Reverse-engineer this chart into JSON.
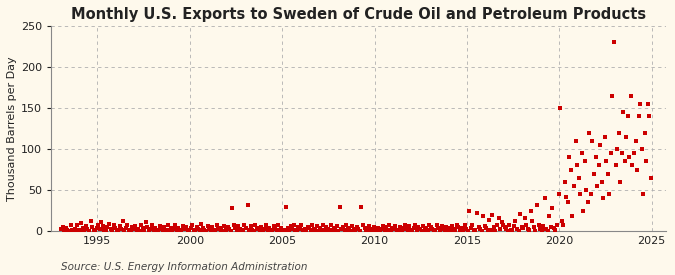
{
  "title": "Monthly U.S. Exports to Sweden of Crude Oil and Petroleum Products",
  "ylabel": "Thousand Barrels per Day",
  "source": "Source: U.S. Energy Information Administration",
  "background_color": "#fef9ec",
  "dot_color": "#cc0000",
  "xlim": [
    1992.5,
    2025.8
  ],
  "ylim": [
    0,
    250
  ],
  "yticks": [
    0,
    50,
    100,
    150,
    200,
    250
  ],
  "xticks": [
    1995,
    2000,
    2005,
    2010,
    2015,
    2020,
    2025
  ],
  "title_fontsize": 10.5,
  "ylabel_fontsize": 8,
  "tick_fontsize": 8,
  "source_fontsize": 7.5,
  "dot_size": 5,
  "data": {
    "years": [
      1993,
      1993,
      1993,
      1993,
      1993,
      1993,
      1993,
      1993,
      1993,
      1993,
      1993,
      1993,
      1994,
      1994,
      1994,
      1994,
      1994,
      1994,
      1994,
      1994,
      1994,
      1994,
      1994,
      1994,
      1995,
      1995,
      1995,
      1995,
      1995,
      1995,
      1995,
      1995,
      1995,
      1995,
      1995,
      1995,
      1996,
      1996,
      1996,
      1996,
      1996,
      1996,
      1996,
      1996,
      1996,
      1996,
      1996,
      1996,
      1997,
      1997,
      1997,
      1997,
      1997,
      1997,
      1997,
      1997,
      1997,
      1997,
      1997,
      1997,
      1998,
      1998,
      1998,
      1998,
      1998,
      1998,
      1998,
      1998,
      1998,
      1998,
      1998,
      1998,
      1999,
      1999,
      1999,
      1999,
      1999,
      1999,
      1999,
      1999,
      1999,
      1999,
      1999,
      1999,
      2000,
      2000,
      2000,
      2000,
      2000,
      2000,
      2000,
      2000,
      2000,
      2000,
      2000,
      2000,
      2001,
      2001,
      2001,
      2001,
      2001,
      2001,
      2001,
      2001,
      2001,
      2001,
      2001,
      2001,
      2002,
      2002,
      2002,
      2002,
      2002,
      2002,
      2002,
      2002,
      2002,
      2002,
      2002,
      2002,
      2003,
      2003,
      2003,
      2003,
      2003,
      2003,
      2003,
      2003,
      2003,
      2003,
      2003,
      2003,
      2004,
      2004,
      2004,
      2004,
      2004,
      2004,
      2004,
      2004,
      2004,
      2004,
      2004,
      2004,
      2005,
      2005,
      2005,
      2005,
      2005,
      2005,
      2005,
      2005,
      2005,
      2005,
      2005,
      2005,
      2006,
      2006,
      2006,
      2006,
      2006,
      2006,
      2006,
      2006,
      2006,
      2006,
      2006,
      2006,
      2007,
      2007,
      2007,
      2007,
      2007,
      2007,
      2007,
      2007,
      2007,
      2007,
      2007,
      2007,
      2008,
      2008,
      2008,
      2008,
      2008,
      2008,
      2008,
      2008,
      2008,
      2008,
      2008,
      2008,
      2009,
      2009,
      2009,
      2009,
      2009,
      2009,
      2009,
      2009,
      2009,
      2009,
      2009,
      2009,
      2010,
      2010,
      2010,
      2010,
      2010,
      2010,
      2010,
      2010,
      2010,
      2010,
      2010,
      2010,
      2011,
      2011,
      2011,
      2011,
      2011,
      2011,
      2011,
      2011,
      2011,
      2011,
      2011,
      2011,
      2012,
      2012,
      2012,
      2012,
      2012,
      2012,
      2012,
      2012,
      2012,
      2012,
      2012,
      2012,
      2013,
      2013,
      2013,
      2013,
      2013,
      2013,
      2013,
      2013,
      2013,
      2013,
      2013,
      2013,
      2014,
      2014,
      2014,
      2014,
      2014,
      2014,
      2014,
      2014,
      2014,
      2014,
      2014,
      2014,
      2015,
      2015,
      2015,
      2015,
      2015,
      2015,
      2015,
      2015,
      2015,
      2015,
      2015,
      2015,
      2016,
      2016,
      2016,
      2016,
      2016,
      2016,
      2016,
      2016,
      2016,
      2016,
      2016,
      2016,
      2017,
      2017,
      2017,
      2017,
      2017,
      2017,
      2017,
      2017,
      2017,
      2017,
      2017,
      2017,
      2018,
      2018,
      2018,
      2018,
      2018,
      2018,
      2018,
      2018,
      2018,
      2018,
      2018,
      2018,
      2019,
      2019,
      2019,
      2019,
      2019,
      2019,
      2019,
      2019,
      2019,
      2019,
      2019,
      2019,
      2020,
      2020,
      2020,
      2020,
      2020,
      2020,
      2020,
      2020,
      2020,
      2020,
      2020,
      2020,
      2021,
      2021,
      2021,
      2021,
      2021,
      2021,
      2021,
      2021,
      2021,
      2021,
      2021,
      2021,
      2022,
      2022,
      2022,
      2022,
      2022,
      2022,
      2022,
      2022,
      2022,
      2022,
      2022,
      2022,
      2023,
      2023,
      2023,
      2023,
      2023,
      2023,
      2023,
      2023,
      2023,
      2023,
      2023,
      2023,
      2024,
      2024,
      2024,
      2024,
      2024,
      2024,
      2024,
      2024,
      2024,
      2024,
      2024,
      2024
    ],
    "months": [
      1,
      2,
      3,
      4,
      5,
      6,
      7,
      8,
      9,
      10,
      11,
      12,
      1,
      2,
      3,
      4,
      5,
      6,
      7,
      8,
      9,
      10,
      11,
      12,
      1,
      2,
      3,
      4,
      5,
      6,
      7,
      8,
      9,
      10,
      11,
      12,
      1,
      2,
      3,
      4,
      5,
      6,
      7,
      8,
      9,
      10,
      11,
      12,
      1,
      2,
      3,
      4,
      5,
      6,
      7,
      8,
      9,
      10,
      11,
      12,
      1,
      2,
      3,
      4,
      5,
      6,
      7,
      8,
      9,
      10,
      11,
      12,
      1,
      2,
      3,
      4,
      5,
      6,
      7,
      8,
      9,
      10,
      11,
      12,
      1,
      2,
      3,
      4,
      5,
      6,
      7,
      8,
      9,
      10,
      11,
      12,
      1,
      2,
      3,
      4,
      5,
      6,
      7,
      8,
      9,
      10,
      11,
      12,
      1,
      2,
      3,
      4,
      5,
      6,
      7,
      8,
      9,
      10,
      11,
      12,
      1,
      2,
      3,
      4,
      5,
      6,
      7,
      8,
      9,
      10,
      11,
      12,
      1,
      2,
      3,
      4,
      5,
      6,
      7,
      8,
      9,
      10,
      11,
      12,
      1,
      2,
      3,
      4,
      5,
      6,
      7,
      8,
      9,
      10,
      11,
      12,
      1,
      2,
      3,
      4,
      5,
      6,
      7,
      8,
      9,
      10,
      11,
      12,
      1,
      2,
      3,
      4,
      5,
      6,
      7,
      8,
      9,
      10,
      11,
      12,
      1,
      2,
      3,
      4,
      5,
      6,
      7,
      8,
      9,
      10,
      11,
      12,
      1,
      2,
      3,
      4,
      5,
      6,
      7,
      8,
      9,
      10,
      11,
      12,
      1,
      2,
      3,
      4,
      5,
      6,
      7,
      8,
      9,
      10,
      11,
      12,
      1,
      2,
      3,
      4,
      5,
      6,
      7,
      8,
      9,
      10,
      11,
      12,
      1,
      2,
      3,
      4,
      5,
      6,
      7,
      8,
      9,
      10,
      11,
      12,
      1,
      2,
      3,
      4,
      5,
      6,
      7,
      8,
      9,
      10,
      11,
      12,
      1,
      2,
      3,
      4,
      5,
      6,
      7,
      8,
      9,
      10,
      11,
      12,
      1,
      2,
      3,
      4,
      5,
      6,
      7,
      8,
      9,
      10,
      11,
      12,
      1,
      2,
      3,
      4,
      5,
      6,
      7,
      8,
      9,
      10,
      11,
      12,
      1,
      2,
      3,
      4,
      5,
      6,
      7,
      8,
      9,
      10,
      11,
      12,
      1,
      2,
      3,
      4,
      5,
      6,
      7,
      8,
      9,
      10,
      11,
      12,
      1,
      2,
      3,
      4,
      5,
      6,
      7,
      8,
      9,
      10,
      11,
      12,
      1,
      2,
      3,
      4,
      5,
      6,
      7,
      8,
      9,
      10,
      11,
      12,
      1,
      2,
      3,
      4,
      5,
      6,
      7,
      8,
      9,
      10,
      11,
      12,
      1,
      2,
      3,
      4,
      5,
      6,
      7,
      8,
      9,
      10,
      11,
      12,
      1,
      2,
      3,
      4,
      5,
      6,
      7,
      8,
      9,
      10,
      11,
      12,
      1,
      2,
      3,
      4,
      5,
      6,
      7,
      8,
      9,
      10,
      11,
      12
    ],
    "values": [
      3,
      5,
      2,
      4,
      1,
      0,
      7,
      2,
      0,
      3,
      8,
      1,
      2,
      10,
      4,
      0,
      6,
      3,
      0,
      12,
      5,
      2,
      0,
      4,
      8,
      3,
      11,
      6,
      2,
      0,
      5,
      9,
      3,
      1,
      7,
      4,
      0,
      2,
      6,
      3,
      12,
      1,
      4,
      8,
      2,
      0,
      5,
      3,
      6,
      1,
      3,
      0,
      8,
      4,
      2,
      11,
      5,
      0,
      3,
      7,
      2,
      4,
      0,
      1,
      6,
      3,
      0,
      5,
      2,
      8,
      1,
      4,
      0,
      3,
      7,
      2,
      4,
      1,
      0,
      6,
      3,
      5,
      2,
      1,
      4,
      8,
      2,
      0,
      5,
      3,
      1,
      9,
      4,
      2,
      0,
      6,
      3,
      1,
      5,
      2,
      0,
      7,
      3,
      4,
      1,
      0,
      6,
      2,
      5,
      3,
      0,
      28,
      8,
      4,
      1,
      6,
      3,
      0,
      2,
      7,
      4,
      32,
      2,
      6,
      1,
      0,
      8,
      4,
      3,
      1,
      5,
      0,
      3,
      7,
      2,
      4,
      0,
      1,
      6,
      3,
      2,
      8,
      1,
      4,
      0,
      2,
      30,
      4,
      1,
      6,
      3,
      8,
      2,
      0,
      5,
      3,
      7,
      1,
      3,
      0,
      5,
      4,
      2,
      8,
      3,
      1,
      6,
      0,
      4,
      2,
      7,
      1,
      5,
      3,
      0,
      8,
      2,
      4,
      1,
      6,
      0,
      29,
      3,
      5,
      2,
      8,
      4,
      1,
      0,
      6,
      3,
      2,
      5,
      3,
      0,
      30,
      8,
      4,
      2,
      1,
      6,
      3,
      0,
      5,
      0,
      2,
      4,
      1,
      3,
      6,
      0,
      5,
      2,
      8,
      1,
      4,
      3,
      6,
      1,
      0,
      5,
      2,
      4,
      8,
      3,
      1,
      6,
      0,
      2,
      4,
      8,
      1,
      5,
      3,
      0,
      6,
      2,
      4,
      1,
      7,
      5,
      3,
      0,
      2,
      8,
      4,
      1,
      6,
      3,
      0,
      5,
      2,
      4,
      1,
      6,
      3,
      0,
      8,
      5,
      2,
      4,
      1,
      7,
      3,
      0,
      25,
      4,
      8,
      2,
      1,
      22,
      5,
      3,
      0,
      18,
      6,
      4,
      2,
      14,
      1,
      20,
      5,
      0,
      8,
      16,
      3,
      11,
      7,
      5,
      3,
      0,
      8,
      2,
      1,
      6,
      13,
      3,
      0,
      21,
      5,
      4,
      16,
      8,
      3,
      1,
      25,
      12,
      5,
      0,
      32,
      8,
      3,
      1,
      6,
      41,
      3,
      0,
      19,
      5,
      28,
      4,
      1,
      7,
      45,
      150,
      12,
      8,
      60,
      42,
      35,
      90,
      75,
      18,
      55,
      110,
      80,
      65,
      45,
      95,
      25,
      85,
      50,
      35,
      120,
      45,
      110,
      70,
      90,
      55,
      80,
      105,
      60,
      40,
      115,
      85,
      70,
      45,
      95,
      165,
      230,
      80,
      100,
      120,
      60,
      95,
      145,
      85,
      115,
      140,
      90,
      165,
      80,
      95,
      110,
      75,
      140,
      155,
      100,
      45,
      120,
      85,
      155,
      140,
      65
    ]
  }
}
